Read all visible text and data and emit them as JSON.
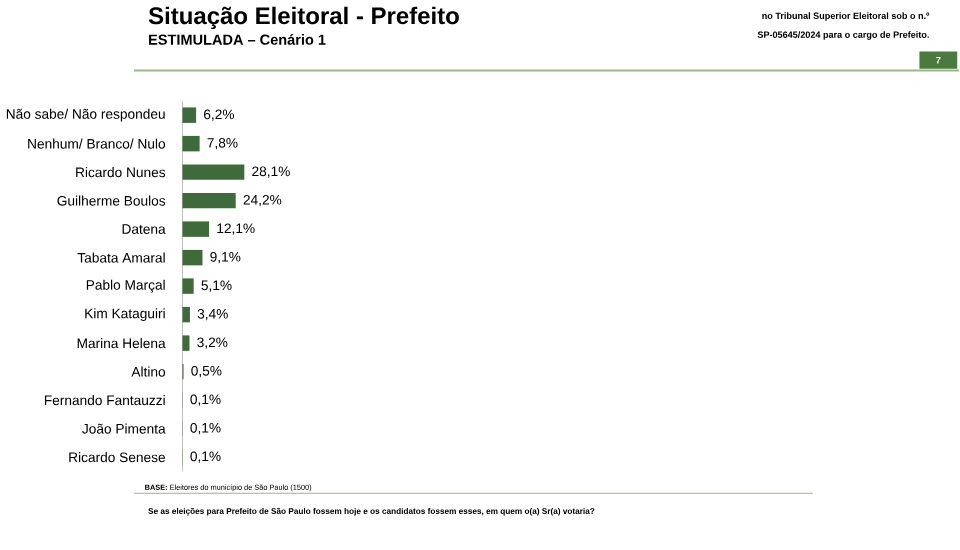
{
  "chart_data": {
    "type": "bar",
    "orientation": "horizontal",
    "title": "Situação Eleitoral - Prefeito",
    "subtitle": "ESTIMULADA – Cenário 1",
    "categories": [
      "Não sabe/ Não respondeu",
      "Nenhum/ Branco/ Nulo",
      "Ricardo Nunes",
      "Guilherme Boulos",
      "Datena",
      "Tabata Amaral",
      "Pablo Marçal",
      "Kim Kataguiri",
      "Marina Helena",
      "Altino",
      "Fernando Fantauzzi",
      "João Pimenta",
      "Ricardo Senese"
    ],
    "values": [
      6.2,
      7.8,
      28.1,
      24.2,
      12.1,
      9.1,
      5.1,
      3.4,
      3.2,
      0.5,
      0.1,
      0.1,
      0.1
    ],
    "value_labels": [
      "6,2%",
      "7,8%",
      "28,1%",
      "24,2%",
      "12,1%",
      "9,1%",
      "5,1%",
      "3,4%",
      "3,2%",
      "0,5%",
      "0,1%",
      "0,1%",
      "0,1%"
    ],
    "color": "#3f6b3a",
    "annotations": [
      "no Tribunal Superior Eleitoral sob o n.º",
      "SP-05645/2024 para o cargo de Prefeito.",
      "7",
      "**BASE:** Eleitores do município de São Paulo (1500)",
      "Se as eleições para Prefeito de São Paulo fossem hoje e os candidatos fossem esses, em quem o(a) Sr(a) votaria?"
    ]
  }
}
